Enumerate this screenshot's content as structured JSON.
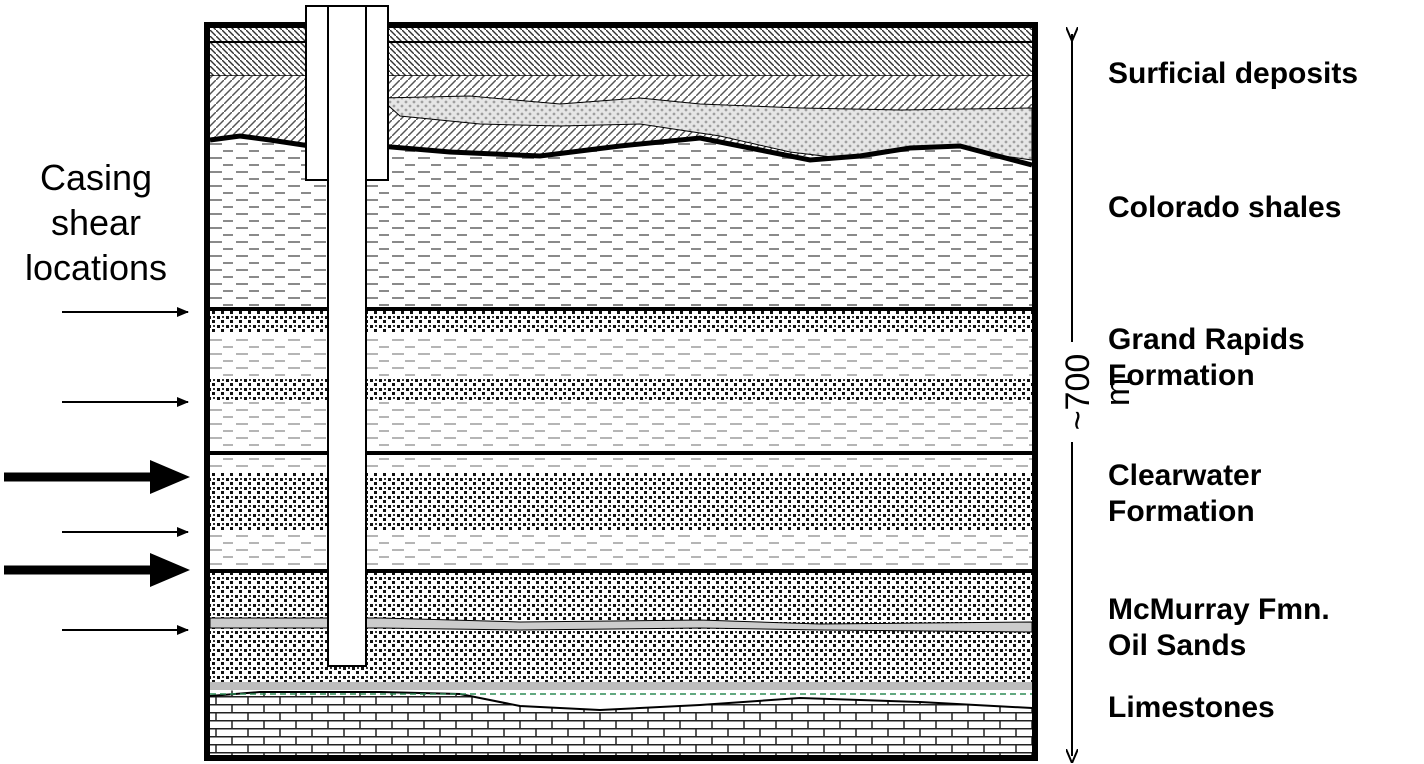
{
  "casing_label": {
    "lines": [
      "Casing",
      "shear",
      "locations"
    ]
  },
  "layers": [
    {
      "name_line1": "Surficial deposits",
      "name_line2": ""
    },
    {
      "name_line1": "Colorado shales",
      "name_line2": ""
    },
    {
      "name_line1": "Grand Rapids",
      "name_line2": "Formation"
    },
    {
      "name_line1": "Clearwater",
      "name_line2": "Formation"
    },
    {
      "name_line1": "McMurray Fmn.",
      "name_line2": "Oil Sands"
    },
    {
      "name_line1": "Limestones",
      "name_line2": ""
    }
  ],
  "depth": {
    "label": "~700 m"
  },
  "shear_arrows": [
    {
      "weight": "thin"
    },
    {
      "weight": "thin"
    },
    {
      "weight": "bold"
    },
    {
      "weight": "thin"
    },
    {
      "weight": "bold"
    },
    {
      "weight": "thin"
    }
  ],
  "colors": {
    "line": "#000000",
    "background": "#ffffff",
    "shale_dash": "#888888",
    "sand_dot": "#111111",
    "gravel_gray": "#b0b0b0",
    "oil_lens": "#cccccc",
    "water_line": "#2e8b57"
  }
}
